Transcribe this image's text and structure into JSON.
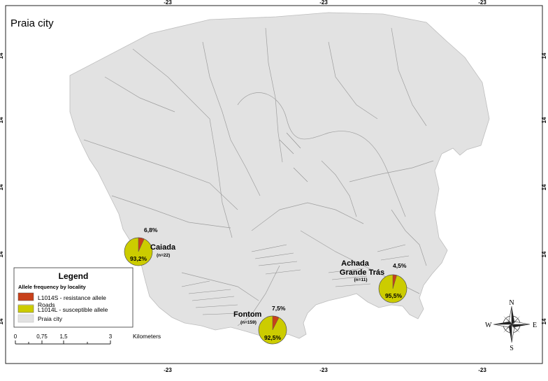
{
  "map": {
    "title": "Praia city",
    "coords": {
      "top_labels": [
        "-23",
        "-23",
        "-23"
      ],
      "bottom_labels": [
        "-23",
        "-23",
        "-23"
      ],
      "left_labels": [
        "14",
        "14",
        "14",
        "14",
        "14"
      ],
      "right_labels": [
        "14",
        "14",
        "14",
        "14",
        "14"
      ]
    },
    "colors": {
      "resistance": "#c8401a",
      "susceptible": "#cccc00",
      "city_fill": "#e2e2e2",
      "roads": "#a9a9a9"
    },
    "localities": [
      {
        "name": "Caiada",
        "n_label": "(n=22)",
        "resistance_label": "6,8%",
        "susceptible_label": "93,2%",
        "resistance_frac": 0.068
      },
      {
        "name": "Fontom",
        "n_label": "(n=159)",
        "resistance_label": "7,5%",
        "susceptible_label": "92,5%",
        "resistance_frac": 0.075
      },
      {
        "name_line1": "Achada",
        "name_line2": "Grande Trás",
        "n_label": "(n=11)",
        "resistance_label": "4,5%",
        "susceptible_label": "95,5%",
        "resistance_frac": 0.045
      }
    ]
  },
  "legend": {
    "title": "Legend",
    "subtitle": "Allele frequency by locality",
    "items": [
      "L1014S - resistance allele",
      "L1014L - susceptible allele",
      "Roads",
      "Praia city"
    ]
  },
  "scalebar": {
    "ticks": [
      "0",
      "0,75",
      "1,5",
      "3"
    ],
    "unit": "Kilometers"
  },
  "compass": {
    "n": "N",
    "s": "S",
    "e": "E",
    "w": "W"
  }
}
